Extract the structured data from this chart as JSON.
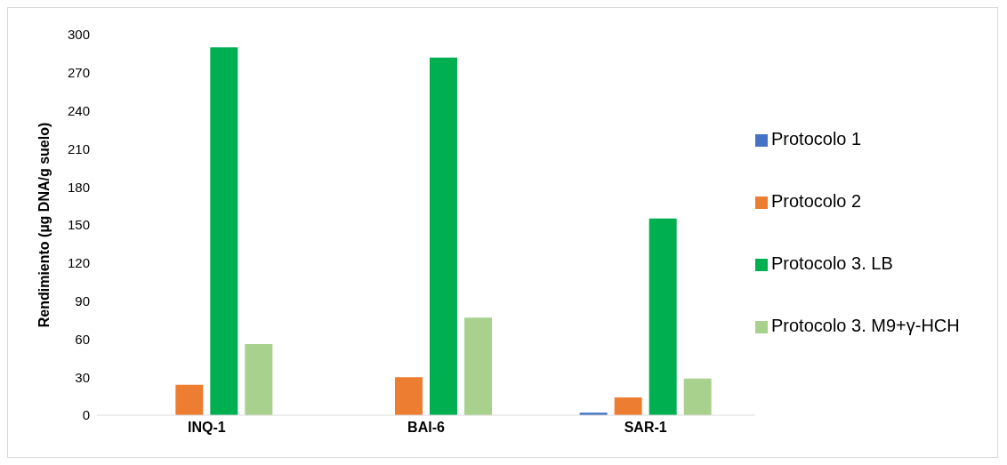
{
  "chart_data": {
    "type": "bar",
    "ylabel": "Rendimiento (µg DNA/g suelo)",
    "categories": [
      "INQ-1",
      "BAI-6",
      "SAR-1"
    ],
    "series": [
      {
        "name": "Protocolo 1",
        "color": "#4472c4",
        "values": [
          null,
          null,
          2
        ]
      },
      {
        "name": "Protocolo 2",
        "color": "#ed7d31",
        "values": [
          24,
          30,
          14
        ]
      },
      {
        "name": "Protocolo 3. LB",
        "color": "#00b050",
        "values": [
          290,
          282,
          155
        ]
      },
      {
        "name": "Protocolo 3. M9+γ-HCH",
        "color": "#a9d18e",
        "values": [
          56,
          77,
          29
        ]
      }
    ],
    "ylim": [
      0,
      300
    ],
    "yticks": [
      0,
      30,
      60,
      90,
      120,
      150,
      180,
      210,
      240,
      270,
      300
    ],
    "grid": false,
    "legend": "right"
  }
}
